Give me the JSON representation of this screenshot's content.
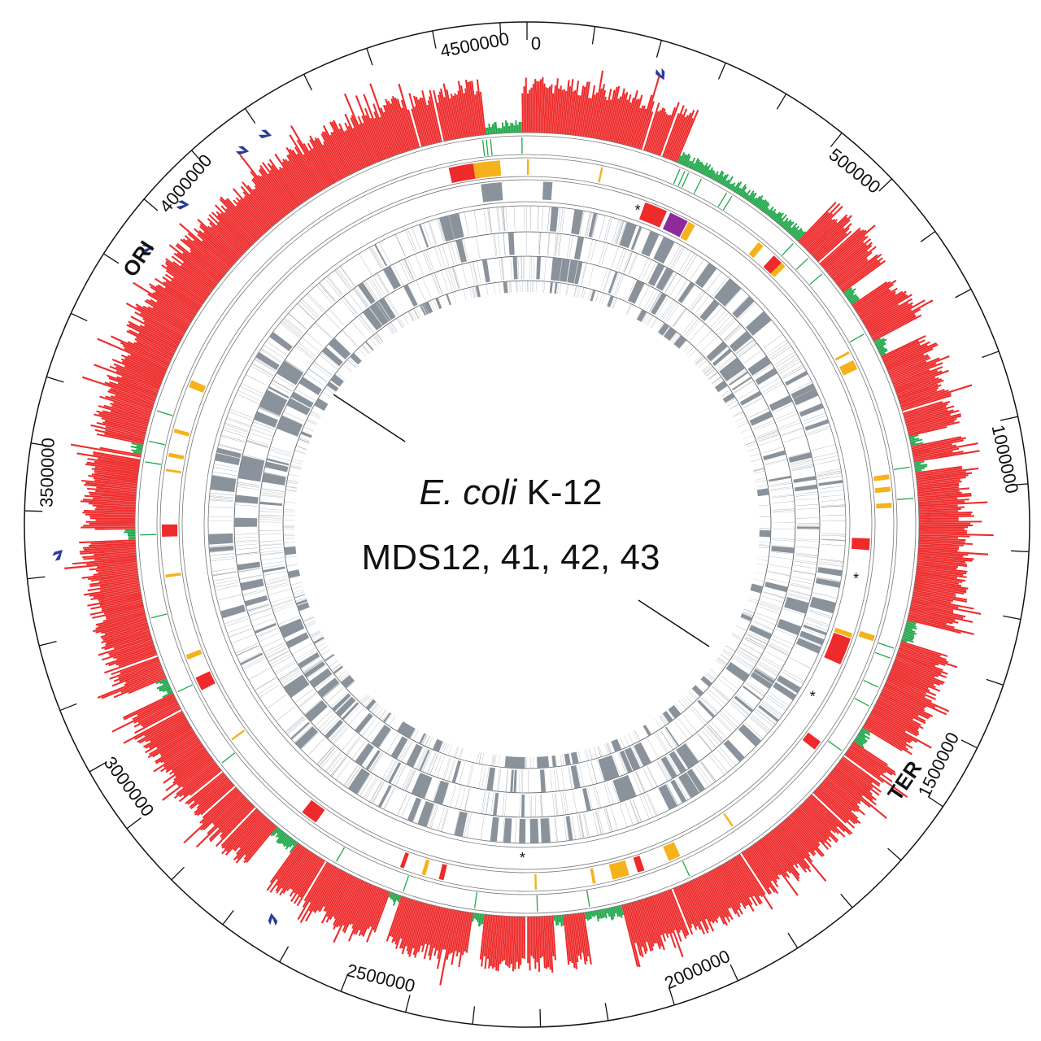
{
  "diagram": {
    "genome_length": 4639675,
    "title_italic": "E. coli",
    "title_rest": " K-12",
    "subtitle": "MDS12, 41, 42, 43",
    "ori_label": "ORI",
    "ter_label": "TER",
    "tick_step": 100000,
    "labels": [
      {
        "pos": 0,
        "text": "0"
      },
      {
        "pos": 500000,
        "text": "500000"
      },
      {
        "pos": 1000000,
        "text": "1000000"
      },
      {
        "pos": 1500000,
        "text": "1500000"
      },
      {
        "pos": 2000000,
        "text": "2000000"
      },
      {
        "pos": 2500000,
        "text": "2500000"
      },
      {
        "pos": 3000000,
        "text": "3000000"
      },
      {
        "pos": 3500000,
        "text": "3500000"
      },
      {
        "pos": 4000000,
        "text": "4000000"
      },
      {
        "pos": 4500000,
        "text": "4500000"
      }
    ],
    "ori_pos": 3923000,
    "ter_pos": 1600000,
    "colors": {
      "red": "#ee2a2a",
      "green": "#1fa84a",
      "orange": "#f5b21b",
      "purple": "#8e2a9a",
      "grey": "#8a939b",
      "blue": "#2b3a9a"
    },
    "low_regions": [
      [
        4560000,
        4630000
      ],
      [
        290000,
        560000
      ],
      [
        690000,
        720000
      ],
      [
        800000,
        830000
      ],
      [
        990000,
        1010000
      ],
      [
        1040000,
        1060000
      ],
      [
        1340000,
        1380000
      ],
      [
        1560000,
        1590000
      ],
      [
        2140000,
        2210000
      ],
      [
        2250000,
        2270000
      ],
      [
        2400000,
        2420000
      ],
      [
        2560000,
        2580000
      ],
      [
        2780000,
        2830000
      ],
      [
        3150000,
        3180000
      ],
      [
        3450000,
        3470000
      ],
      [
        3610000,
        3630000
      ]
    ],
    "blocks_track2": [
      {
        "start": 4480000,
        "end": 4536000,
        "color": "red"
      },
      {
        "start": 4530000,
        "end": 4585000,
        "color": "orange"
      },
      {
        "start": 0,
        "end": 4000,
        "color": "orange"
      },
      {
        "start": 151000,
        "end": 155000,
        "color": "orange"
      },
      {
        "start": 507000,
        "end": 520000,
        "color": "orange"
      },
      {
        "start": 548000,
        "end": 575000,
        "color": "red"
      },
      {
        "start": 569000,
        "end": 580000,
        "color": "orange"
      },
      {
        "start": 795000,
        "end": 800000,
        "color": "orange"
      },
      {
        "start": 815000,
        "end": 835000,
        "color": "orange"
      },
      {
        "start": 1058000,
        "end": 1068000,
        "color": "orange"
      },
      {
        "start": 1083000,
        "end": 1093000,
        "color": "orange"
      },
      {
        "start": 1116000,
        "end": 1126000,
        "color": "orange"
      },
      {
        "start": 1388000,
        "end": 1400000,
        "color": "orange"
      },
      {
        "start": 1630000,
        "end": 1650000,
        "color": "red"
      },
      {
        "start": 1876000,
        "end": 1880000,
        "color": "orange"
      },
      {
        "start": 2000000,
        "end": 2025000,
        "color": "orange"
      },
      {
        "start": 2078000,
        "end": 2092000,
        "color": "red"
      },
      {
        "start": 2110000,
        "end": 2145000,
        "color": "orange"
      },
      {
        "start": 2180000,
        "end": 2186000,
        "color": "orange"
      },
      {
        "start": 2300000,
        "end": 2304000,
        "color": "orange"
      },
      {
        "start": 2490000,
        "end": 2500000,
        "color": "red"
      },
      {
        "start": 2528000,
        "end": 2536000,
        "color": "orange"
      },
      {
        "start": 2574000,
        "end": 2582000,
        "color": "red"
      },
      {
        "start": 2775000,
        "end": 2810000,
        "color": "red"
      },
      {
        "start": 3013000,
        "end": 3017000,
        "color": "orange"
      },
      {
        "start": 3132000,
        "end": 3160000,
        "color": "red"
      },
      {
        "start": 3200000,
        "end": 3210000,
        "color": "orange"
      },
      {
        "start": 3372000,
        "end": 3378000,
        "color": "orange"
      },
      {
        "start": 3455000,
        "end": 3480000,
        "color": "red"
      },
      {
        "start": 3588000,
        "end": 3593000,
        "color": "orange"
      },
      {
        "start": 3618000,
        "end": 3626000,
        "color": "orange"
      },
      {
        "start": 3668000,
        "end": 3676000,
        "color": "orange"
      },
      {
        "start": 3765000,
        "end": 3780000,
        "color": "orange"
      }
    ],
    "blocks_track3": [
      {
        "start": 260000,
        "end": 310000,
        "color": "red"
      },
      {
        "start": 318000,
        "end": 360000,
        "color": "purple"
      },
      {
        "start": 362000,
        "end": 378000,
        "color": "orange"
      },
      {
        "start": 1190000,
        "end": 1215000,
        "color": "red"
      },
      {
        "start": 1410000,
        "end": 1470000,
        "color": "red"
      },
      {
        "start": 1398000,
        "end": 1408000,
        "color": "orange"
      },
      {
        "start": 4540000,
        "end": 4585000,
        "color": "grey"
      },
      {
        "start": 35000,
        "end": 55000,
        "color": "grey"
      }
    ],
    "green_marks": [
      4555000,
      4562000,
      4570000,
      4630000,
      300000,
      310000,
      318000,
      345000,
      400000,
      412000,
      560000,
      600000,
      640000,
      780000,
      1050000,
      1110000,
      1400000,
      1420000,
      1480000,
      1520000,
      1620000,
      2000000,
      2200000,
      2300000,
      2420000,
      2560000,
      2700000,
      2990000,
      3150000,
      3300000,
      3460000,
      3600000,
      3640000,
      3700000
    ],
    "asterisks": [
      250000,
      1280000,
      1560000,
      2330000
    ],
    "markers": [
      213000,
      4203000,
      4159000,
      4032000,
      3944000,
      3432000,
      2742000
    ]
  }
}
